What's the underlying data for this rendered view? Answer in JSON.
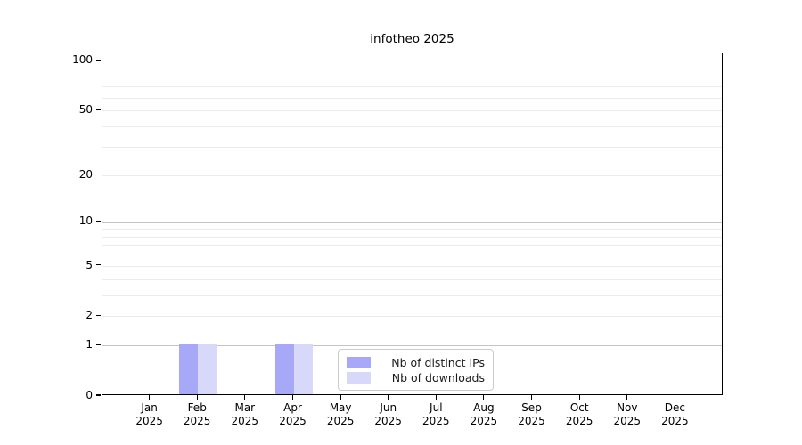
{
  "chart_data": {
    "type": "bar",
    "title": "infotheo 2025",
    "categories": [
      "Jan",
      "Feb",
      "Mar",
      "Apr",
      "May",
      "Jun",
      "Jul",
      "Aug",
      "Sep",
      "Oct",
      "Nov",
      "Dec"
    ],
    "x_year_label": "2025",
    "series": [
      {
        "name": "Nb of distinct IPs",
        "color": "#a8a8f8",
        "values": [
          0,
          1,
          0,
          1,
          0,
          0,
          0,
          0,
          0,
          0,
          0,
          0
        ]
      },
      {
        "name": "Nb of downloads",
        "color": "#d8d8fa",
        "values": [
          0,
          1,
          0,
          1,
          0,
          0,
          0,
          0,
          0,
          0,
          0,
          0
        ]
      }
    ],
    "y_axis": {
      "scale": "log1p",
      "min": 0,
      "max": 111,
      "ticks": [
        0,
        1,
        2,
        5,
        10,
        20,
        50,
        100
      ],
      "major_gridlines": [
        1,
        10,
        100
      ],
      "minor_gridline_base": [
        2,
        3,
        4,
        5,
        6,
        7,
        8,
        9
      ]
    },
    "legend": {
      "position": "bottom-center"
    },
    "grid": true
  },
  "colors": {
    "major_grid": "#c4c4c4",
    "minor_grid": "#ebebeb",
    "spine": "#000000",
    "background": "#ffffff"
  }
}
